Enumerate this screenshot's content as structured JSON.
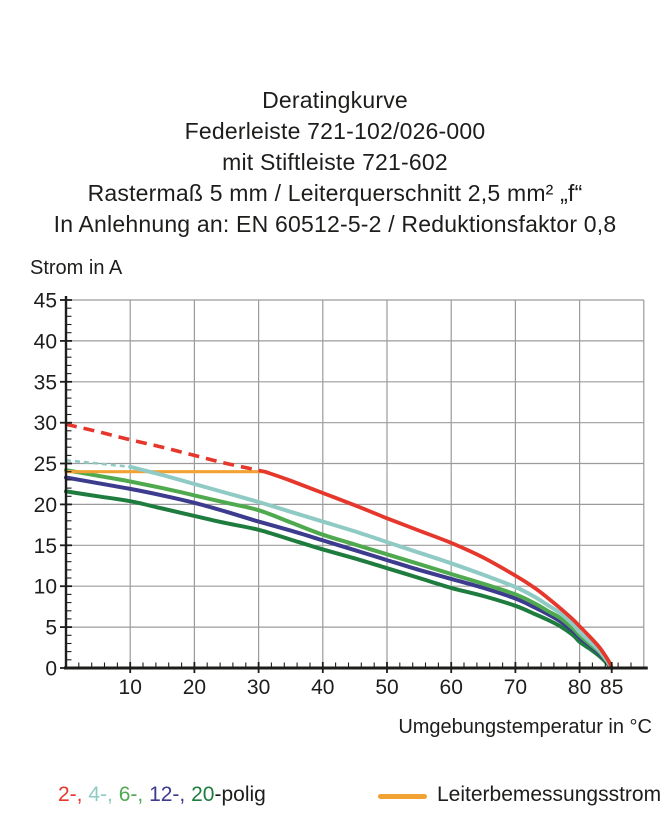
{
  "header": {
    "title_lines": [
      "Deratingkurve",
      "Federleiste 721-102/026-000",
      "mit Stiftleiste 721-602",
      "Rastermaß 5 mm / Leiterquerschnitt 2,5 mm² „f“",
      "In Anlehnung an: EN 60512-5-2 / Reduktionsfaktor 0,8"
    ]
  },
  "legend": {
    "pole_items": [
      {
        "label": "2-,",
        "color": "#e5372b"
      },
      {
        "label": "4-,",
        "color": "#8fcac4"
      },
      {
        "label": "6-,",
        "color": "#4fa94e"
      },
      {
        "label": "12-,",
        "color": "#3c3b8e"
      },
      {
        "label": "20",
        "color": "#1f7c3f"
      }
    ],
    "suffix": "-polig",
    "rated_label": "Leiterbemessungsstrom",
    "rated_color": "#f2a233"
  },
  "chart_data": {
    "type": "line",
    "title": "Deratingkurve Federleiste 721-102/026-000 mit Stiftleiste 721-602",
    "ylabel": "Strom in A",
    "xlabel": "Umgebungstemperatur in °C",
    "xlim": [
      0,
      90
    ],
    "ylim": [
      0,
      45
    ],
    "x_ticks": [
      10,
      20,
      30,
      40,
      50,
      60,
      70,
      80,
      85
    ],
    "x_gridlines": [
      10,
      20,
      30,
      40,
      50,
      60,
      70,
      80
    ],
    "y_ticks": [
      0,
      5,
      10,
      15,
      20,
      25,
      30,
      35,
      40,
      45
    ],
    "y_gridlines": [
      5,
      10,
      15,
      20,
      25,
      30,
      35,
      40,
      45
    ],
    "grid": true,
    "legend_position": "bottom",
    "colors": {
      "grid": "#9b9b9b",
      "axis": "#1d1d1b"
    },
    "series": [
      {
        "name": "20-polig",
        "color": "#1f7c3f",
        "width": 4,
        "solid": [
          [
            0,
            21.6
          ],
          [
            5,
            21.0
          ],
          [
            10,
            20.4
          ],
          [
            15,
            19.5
          ],
          [
            20,
            18.6
          ],
          [
            25,
            17.7
          ],
          [
            30,
            16.9
          ],
          [
            35,
            15.7
          ],
          [
            40,
            14.5
          ],
          [
            45,
            13.4
          ],
          [
            50,
            12.2
          ],
          [
            55,
            11.0
          ],
          [
            60,
            9.8
          ],
          [
            65,
            8.8
          ],
          [
            70,
            7.6
          ],
          [
            73,
            6.6
          ],
          [
            75,
            5.9
          ],
          [
            77,
            5.1
          ],
          [
            79,
            4.0
          ],
          [
            80,
            3.2
          ],
          [
            81.5,
            2.4
          ],
          [
            83,
            1.5
          ],
          [
            84,
            0.8
          ],
          [
            84.6,
            0.3
          ],
          [
            85,
            0
          ]
        ]
      },
      {
        "name": "12-polig",
        "color": "#3c3b8e",
        "width": 4,
        "solid": [
          [
            0,
            23.3
          ],
          [
            5,
            22.6
          ],
          [
            10,
            21.9
          ],
          [
            15,
            21.1
          ],
          [
            20,
            20.2
          ],
          [
            25,
            19.1
          ],
          [
            30,
            17.9
          ],
          [
            35,
            16.8
          ],
          [
            40,
            15.6
          ],
          [
            45,
            14.4
          ],
          [
            50,
            13.2
          ],
          [
            55,
            12.0
          ],
          [
            60,
            10.9
          ],
          [
            65,
            9.8
          ],
          [
            70,
            8.5
          ],
          [
            73,
            7.4
          ],
          [
            75,
            6.6
          ],
          [
            77,
            5.7
          ],
          [
            79,
            4.5
          ],
          [
            80,
            3.7
          ],
          [
            81.5,
            2.8
          ],
          [
            83,
            1.8
          ],
          [
            84,
            1.0
          ],
          [
            84.6,
            0.4
          ],
          [
            85,
            0
          ]
        ]
      },
      {
        "name": "6-polig",
        "color": "#4fa94e",
        "width": 4,
        "solid": [
          [
            0,
            24.2
          ],
          [
            5,
            23.5
          ],
          [
            10,
            22.8
          ],
          [
            15,
            22.0
          ],
          [
            20,
            21.1
          ],
          [
            25,
            20.2
          ],
          [
            30,
            19.3
          ],
          [
            35,
            17.8
          ],
          [
            40,
            16.3
          ],
          [
            45,
            15.1
          ],
          [
            50,
            13.9
          ],
          [
            55,
            12.7
          ],
          [
            60,
            11.5
          ],
          [
            65,
            10.3
          ],
          [
            70,
            9.0
          ],
          [
            73,
            7.9
          ],
          [
            75,
            7.0
          ],
          [
            77,
            6.1
          ],
          [
            79,
            4.8
          ],
          [
            80,
            4.0
          ],
          [
            81.5,
            3.0
          ],
          [
            83,
            2.0
          ],
          [
            84,
            1.1
          ],
          [
            84.6,
            0.45
          ],
          [
            85,
            0
          ]
        ]
      },
      {
        "name": "Leiterbemessungsstrom",
        "color": "#f2a233",
        "width": 3.2,
        "solid": [
          [
            0,
            24
          ],
          [
            31,
            24
          ]
        ]
      },
      {
        "name": "4-polig",
        "color": "#8fcac4",
        "width": 4,
        "dash_pattern": "5 4",
        "dash_width": 2.6,
        "dashed": [
          [
            0,
            25.4
          ],
          [
            5,
            25.0
          ],
          [
            10,
            24.6
          ]
        ],
        "solid": [
          [
            10,
            24.6
          ],
          [
            15,
            23.6
          ],
          [
            20,
            22.5
          ],
          [
            25,
            21.4
          ],
          [
            30,
            20.3
          ],
          [
            35,
            19.1
          ],
          [
            40,
            17.9
          ],
          [
            45,
            16.7
          ],
          [
            50,
            15.4
          ],
          [
            55,
            14.1
          ],
          [
            60,
            12.8
          ],
          [
            65,
            11.4
          ],
          [
            70,
            9.9
          ],
          [
            73,
            8.7
          ],
          [
            75,
            7.7
          ],
          [
            77,
            6.7
          ],
          [
            79,
            5.3
          ],
          [
            80,
            4.4
          ],
          [
            81.5,
            3.3
          ],
          [
            83,
            2.2
          ],
          [
            84,
            1.2
          ],
          [
            84.6,
            0.5
          ],
          [
            85,
            0
          ]
        ]
      },
      {
        "name": "2-polig",
        "color": "#e5372b",
        "width": 3.8,
        "dash_pattern": "11 7",
        "dash_width": 3.6,
        "dashed": [
          [
            0,
            29.8
          ],
          [
            5,
            28.9
          ],
          [
            10,
            27.9
          ],
          [
            15,
            27.0
          ],
          [
            20,
            26.0
          ],
          [
            25,
            25.0
          ],
          [
            31,
            24.0
          ]
        ],
        "solid": [
          [
            31,
            24.0
          ],
          [
            35,
            22.9
          ],
          [
            40,
            21.4
          ],
          [
            45,
            19.9
          ],
          [
            50,
            18.3
          ],
          [
            55,
            16.8
          ],
          [
            60,
            15.3
          ],
          [
            65,
            13.5
          ],
          [
            70,
            11.3
          ],
          [
            73,
            9.8
          ],
          [
            75,
            8.6
          ],
          [
            77,
            7.3
          ],
          [
            79,
            5.9
          ],
          [
            80,
            5.1
          ],
          [
            81.5,
            3.9
          ],
          [
            83,
            2.6
          ],
          [
            84,
            1.5
          ],
          [
            84.7,
            0.6
          ],
          [
            85,
            0
          ]
        ]
      }
    ]
  }
}
